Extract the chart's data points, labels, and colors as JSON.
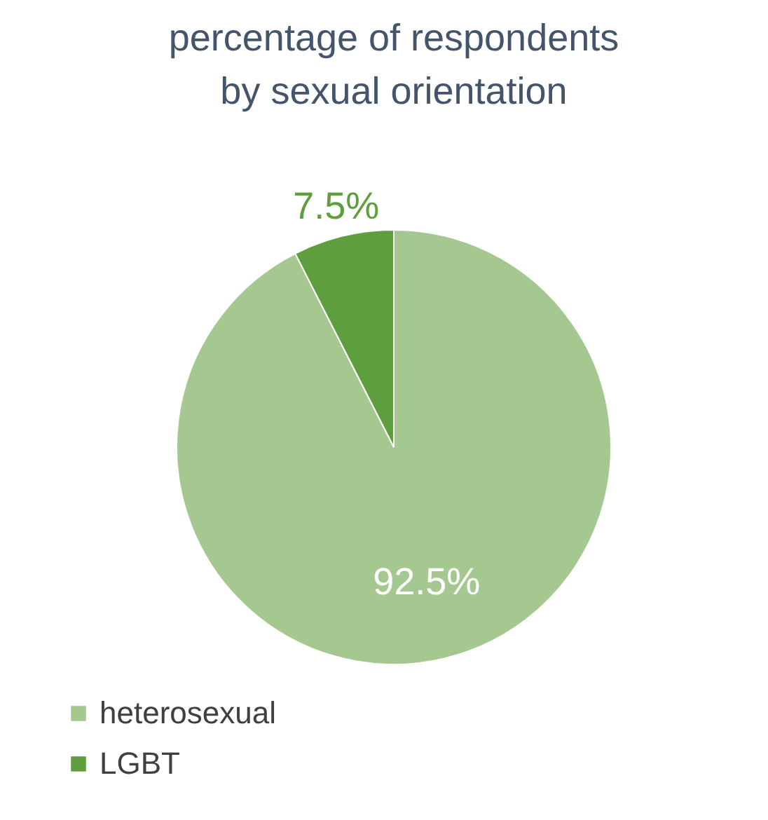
{
  "chart_data": {
    "type": "pie",
    "title": [
      "percentage of respondents",
      "by sexual orientation"
    ],
    "categories": [
      "heterosexual",
      "LGBT"
    ],
    "values": [
      92.5,
      7.5
    ],
    "colors": [
      "#a5c890",
      "#5f9e3e"
    ],
    "value_labels": [
      "92.5%",
      "7.5%"
    ],
    "legend": "bottom left"
  }
}
